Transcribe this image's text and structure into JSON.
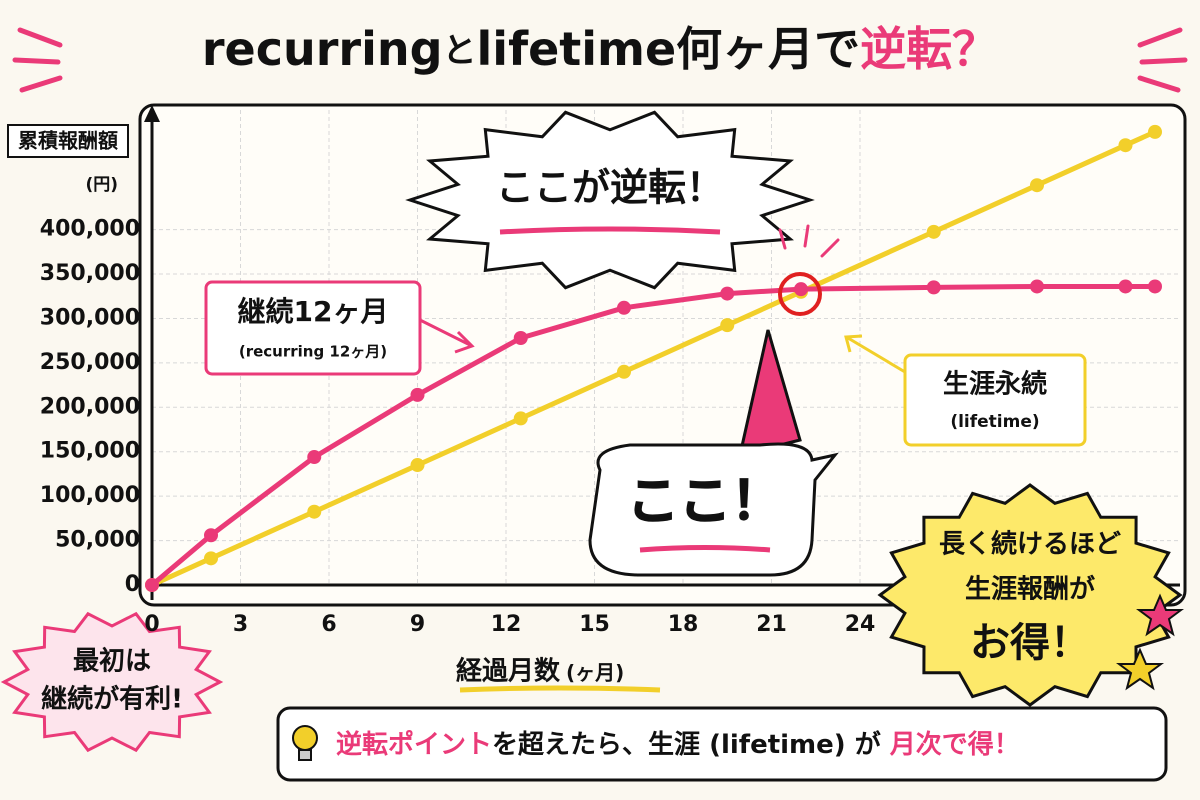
{
  "chart_data": {
    "type": "line",
    "title": [
      "recurring",
      "と",
      "lifetime",
      "何ヶ月で",
      "逆転？"
    ],
    "y_label": "累積報酬額",
    "y_unit": "(円)",
    "x_label": "経過月数",
    "x_unit": "(ヶ月)",
    "x": [
      0,
      2,
      5.5,
      9,
      12.5,
      16,
      19.5,
      22,
      26.5,
      30,
      33,
      34
    ],
    "series": [
      {
        "name": "継続12ヶ月",
        "sub": "(recurring 12ヶ月)",
        "color": "#ea3a78",
        "values": [
          0,
          56000,
          144000,
          214000,
          278000,
          312000,
          328000,
          333000,
          335000,
          336000,
          336000,
          336000
        ]
      },
      {
        "name": "生涯永続",
        "sub": "(lifetime)",
        "color": "#f2cf2a",
        "values": [
          0,
          30000,
          82500,
          135000,
          187500,
          240000,
          292500,
          330000,
          397500,
          450000,
          495000,
          510000
        ]
      }
    ],
    "xlim": [
      0,
      34
    ],
    "ylim": [
      0,
      520000
    ],
    "xticks": [
      0,
      3,
      6,
      9,
      12,
      15,
      18,
      21,
      24
    ],
    "yticks": [
      0,
      {
        "value": 50000,
        "label": "50,000"
      },
      {
        "value": 100000,
        "label": "100,000"
      },
      {
        "value": 150000,
        "label": "150,000"
      },
      {
        "value": 200000,
        "label": "200,000"
      },
      {
        "value": 250000,
        "label": "250,000"
      },
      {
        "value": 300000,
        "label": "300,000"
      },
      {
        "value": 350000,
        "label": "350,000"
      },
      {
        "value": 400000,
        "label": "400,000"
      }
    ],
    "grid": true,
    "crossover_label": "ここが逆転！",
    "pointer_label": "ここ！",
    "left_note": [
      "最初は",
      "継続が有利!"
    ],
    "right_note": [
      "長く続けるほど",
      "生涯報酬が",
      "お得！"
    ],
    "footer": [
      "逆転ポイント",
      "を超えたら、生涯 (lifetime) が ",
      "月次で得！"
    ]
  }
}
